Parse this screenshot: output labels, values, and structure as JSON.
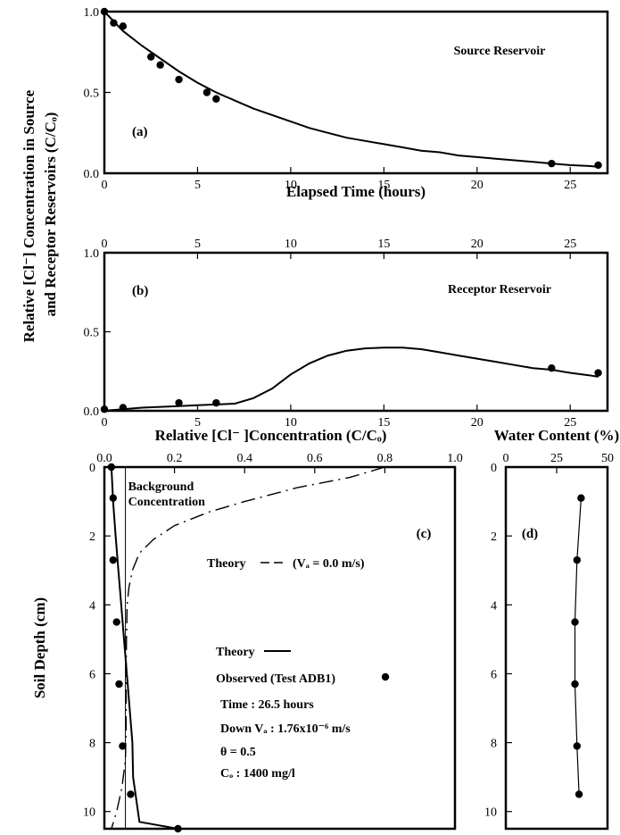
{
  "y_title_line1": "Relative [Cl⁻] Concentration in Source",
  "y_title_line2": "and Receptor Reservoirs (C/Cₒ)",
  "chart_data": [
    {
      "id": "a",
      "type": "line",
      "panel_label": "(a)",
      "annotation": "Source Reservoir",
      "xlabel": "Elapsed Time (hours)",
      "xlim": [
        0,
        27
      ],
      "ylim": [
        0,
        1
      ],
      "xticks": [
        0,
        5,
        10,
        15,
        20,
        25
      ],
      "yticks": [
        0.0,
        0.5,
        1.0
      ],
      "ytick_labels": [
        "0.0",
        "0.5",
        "1.0"
      ],
      "series": [
        {
          "kind": "line",
          "x": [
            0,
            1,
            2,
            3,
            4,
            5,
            6,
            7,
            8,
            9,
            10,
            11,
            12,
            13,
            14,
            15,
            16,
            17,
            18,
            19,
            20,
            21,
            22,
            23,
            24,
            25,
            26,
            26.5
          ],
          "y": [
            1.0,
            0.88,
            0.79,
            0.71,
            0.63,
            0.56,
            0.5,
            0.45,
            0.4,
            0.36,
            0.32,
            0.28,
            0.25,
            0.22,
            0.2,
            0.18,
            0.16,
            0.14,
            0.13,
            0.11,
            0.1,
            0.09,
            0.08,
            0.07,
            0.06,
            0.05,
            0.045,
            0.04
          ]
        },
        {
          "kind": "scatter",
          "x": [
            0,
            0.5,
            1,
            2.5,
            3,
            4,
            5.5,
            6,
            24,
            26.5
          ],
          "y": [
            1.0,
            0.93,
            0.91,
            0.72,
            0.67,
            0.58,
            0.5,
            0.46,
            0.06,
            0.05
          ]
        }
      ]
    },
    {
      "id": "b",
      "type": "line",
      "panel_label": "(b)",
      "annotation": "Receptor Reservoir",
      "xlim": [
        0,
        27
      ],
      "ylim": [
        0,
        1
      ],
      "xticks": [
        0,
        5,
        10,
        15,
        20,
        25
      ],
      "yticks": [
        0.0,
        0.5,
        1.0
      ],
      "ytick_labels": [
        "0.0",
        "0.5",
        "1.0"
      ],
      "series": [
        {
          "kind": "line",
          "x": [
            0,
            1,
            2,
            3,
            4,
            5,
            6,
            7,
            8,
            9,
            10,
            11,
            12,
            13,
            14,
            15,
            16,
            17,
            18,
            19,
            20,
            21,
            22,
            23,
            24,
            25,
            26,
            26.5
          ],
          "y": [
            0.0,
            0.01,
            0.02,
            0.025,
            0.03,
            0.035,
            0.04,
            0.045,
            0.08,
            0.14,
            0.23,
            0.3,
            0.35,
            0.38,
            0.395,
            0.4,
            0.4,
            0.39,
            0.37,
            0.35,
            0.33,
            0.31,
            0.29,
            0.27,
            0.26,
            0.24,
            0.225,
            0.215
          ]
        },
        {
          "kind": "scatter",
          "x": [
            0,
            1,
            4,
            6,
            24,
            26.5
          ],
          "y": [
            0.01,
            0.02,
            0.05,
            0.05,
            0.27,
            0.24
          ]
        }
      ]
    },
    {
      "id": "c",
      "type": "line",
      "panel_label": "(c)",
      "xlabel": "Relative [Cl⁻ ]Concentration (C/Cₒ)",
      "ylabel": "Soil Depth (cm)",
      "xlim": [
        0,
        1
      ],
      "ylim": [
        10.5,
        0
      ],
      "xticks": [
        0.0,
        0.2,
        0.4,
        0.6,
        0.8,
        1.0
      ],
      "xtick_labels": [
        "0.0",
        "0.2",
        "0.4",
        "0.6",
        "0.8",
        "1.0"
      ],
      "yticks": [
        0,
        2,
        4,
        6,
        8,
        10
      ],
      "background_label": "Background\nConcentration",
      "background_value": 0.06,
      "theory_dashed_label": "Theory",
      "theory_dashed_note": "(Vₐ = 0.0 m/s)",
      "legend_theory": "Theory",
      "legend_observed": "Observed (Test ADB1)",
      "params": [
        "Time : 26.5 hours",
        "Down Vₐ : 1.76x10⁻⁶ m/s",
        "θ = 0.5",
        "Cₒ : 1400 mg/l"
      ],
      "series": [
        {
          "kind": "line",
          "name": "Theory",
          "x": [
            0.02,
            0.025,
            0.032,
            0.04,
            0.048,
            0.056,
            0.064,
            0.072,
            0.08,
            0.082,
            0.1,
            0.21
          ],
          "y": [
            0,
            1,
            2,
            3,
            4,
            5,
            6,
            7,
            8,
            9,
            10.3,
            10.5
          ]
        },
        {
          "kind": "dashed",
          "name": "Theory (Vₐ = 0.0 m/s)",
          "x": [
            0.8,
            0.7,
            0.55,
            0.4,
            0.3,
            0.2,
            0.14,
            0.1,
            0.08,
            0.07,
            0.065,
            0.063,
            0.062,
            0.062,
            0.06,
            0.05,
            0.035,
            0.02
          ],
          "y": [
            0,
            0.3,
            0.6,
            1.0,
            1.3,
            1.7,
            2.1,
            2.5,
            3.0,
            3.5,
            4.0,
            5.0,
            6.0,
            7.5,
            8.5,
            9.3,
            10.0,
            10.5
          ]
        },
        {
          "kind": "scatter",
          "name": "Observed (Test ADB1)",
          "x": [
            0.02,
            0.025,
            0.025,
            0.035,
            0.042,
            0.052,
            0.075,
            0.21
          ],
          "y": [
            0,
            0.9,
            2.7,
            4.5,
            6.3,
            8.1,
            9.5,
            10.5
          ]
        }
      ]
    },
    {
      "id": "d",
      "type": "line",
      "panel_label": "(d)",
      "xlabel": "Water Content (%)",
      "xlim": [
        0,
        50
      ],
      "ylim": [
        10.5,
        0
      ],
      "xticks": [
        0,
        25,
        50
      ],
      "yticks": [
        0,
        2,
        4,
        6,
        8,
        10
      ],
      "series": [
        {
          "kind": "line+scatter",
          "x": [
            37,
            35,
            34,
            34,
            35,
            36
          ],
          "y": [
            0.9,
            2.7,
            4.5,
            6.3,
            8.1,
            9.5
          ]
        }
      ]
    }
  ]
}
